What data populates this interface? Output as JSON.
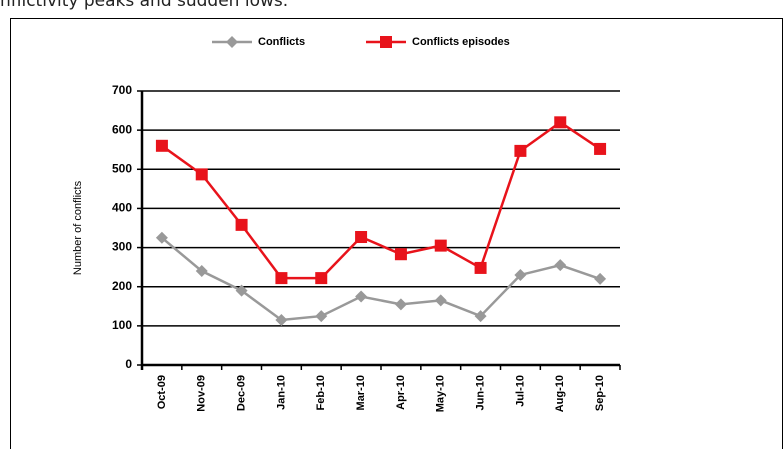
{
  "header_text": "nflictivity peaks and sudden lows.",
  "chart_data": {
    "type": "line",
    "y_label": "Number of conflicts",
    "categories": [
      "Oct-09",
      "Nov-09",
      "Dec-09",
      "Jan-10",
      "Feb-10",
      "Mar-10",
      "Apr-10",
      "May-10",
      "Jun-10",
      "Jul-10",
      "Aug-10",
      "Sep-10"
    ],
    "series": [
      {
        "name": "Conflicts",
        "color": "#999999",
        "marker": "diamond",
        "values": [
          325,
          240,
          190,
          115,
          125,
          175,
          155,
          165,
          125,
          230,
          255,
          220
        ]
      },
      {
        "name": "Conflicts episodes",
        "color": "#e8131b",
        "marker": "square",
        "values": [
          560,
          487,
          358,
          222,
          222,
          327,
          283,
          305,
          248,
          547,
          620,
          552
        ]
      }
    ],
    "ylim": [
      0,
      700
    ],
    "yticks": [
      0,
      100,
      200,
      300,
      400,
      500,
      600,
      700
    ],
    "grid": true,
    "legend": "top"
  }
}
